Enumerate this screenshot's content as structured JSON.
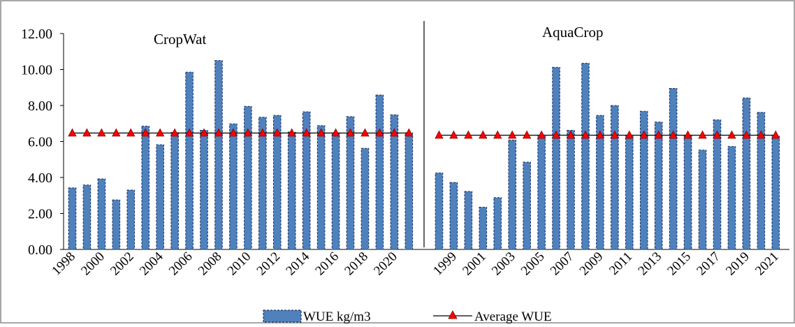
{
  "chart_data": {
    "type": "bar",
    "ylim": [
      0,
      12
    ],
    "yticks": [
      "0.00",
      "2.00",
      "4.00",
      "6.00",
      "8.00",
      "10.00",
      "12.00"
    ],
    "grid": false,
    "legend_position": "bottom",
    "legend": {
      "bar_label": "WUE kg/m3",
      "line_label": "Average WUE"
    },
    "colors": {
      "bar_fill": "#4f81bd",
      "bar_stroke": "#1f3864",
      "average_line": "#000000",
      "average_marker": "#ff0000"
    },
    "panels": [
      {
        "title": "CropWat",
        "categories": [
          "1998",
          "1999",
          "2000",
          "2001",
          "2002",
          "2003",
          "2004",
          "2005",
          "2006",
          "2007",
          "2008",
          "2009",
          "2010",
          "2011",
          "2012",
          "2013",
          "2014",
          "2015",
          "2016",
          "2017",
          "2018",
          "2019",
          "2020",
          "2021"
        ],
        "tick_labels": [
          "1998",
          "",
          "2000",
          "",
          "2002",
          "",
          "2004",
          "",
          "2006",
          "",
          "2008",
          "",
          "2010",
          "",
          "2012",
          "",
          "2014",
          "",
          "2016",
          "",
          "2018",
          "",
          "2020",
          ""
        ],
        "series": [
          {
            "name": "WUE kg/m3",
            "values": [
              3.42,
              3.58,
              3.92,
              2.75,
              3.3,
              6.85,
              5.82,
              6.5,
              9.85,
              6.62,
              10.5,
              6.98,
              7.95,
              7.35,
              7.45,
              6.52,
              7.65,
              6.88,
              6.48,
              7.38,
              5.62,
              8.58,
              7.48,
              6.48
            ]
          },
          {
            "name": "Average WUE",
            "values": [
              6.47,
              6.47,
              6.47,
              6.47,
              6.47,
              6.47,
              6.47,
              6.47,
              6.47,
              6.47,
              6.47,
              6.47,
              6.47,
              6.47,
              6.47,
              6.47,
              6.47,
              6.47,
              6.47,
              6.47,
              6.47,
              6.47,
              6.47,
              6.47
            ]
          }
        ]
      },
      {
        "title": "AquaCrop",
        "categories": [
          "1998",
          "1999",
          "2000",
          "2001",
          "2002",
          "2003",
          "2004",
          "2005",
          "2006",
          "2007",
          "2008",
          "2009",
          "2010",
          "2011",
          "2012",
          "2013",
          "2014",
          "2015",
          "2016",
          "2017",
          "2018",
          "2019",
          "2020",
          "2021"
        ],
        "tick_labels": [
          "",
          "1999",
          "",
          "2001",
          "",
          "2003",
          "",
          "2005",
          "",
          "2007",
          "",
          "2009",
          "",
          "2011",
          "",
          "2013",
          "",
          "2015",
          "",
          "2017",
          "",
          "2019",
          "",
          "2021"
        ],
        "series": [
          {
            "name": "WUE kg/m3",
            "values": [
              4.25,
              3.72,
              3.22,
              2.35,
              2.88,
              6.08,
              4.85,
              6.3,
              10.12,
              6.62,
              10.35,
              7.45,
              8.0,
              6.3,
              7.68,
              7.08,
              8.95,
              6.35,
              5.52,
              7.2,
              5.72,
              8.42,
              7.62,
              6.3
            ]
          },
          {
            "name": "Average WUE",
            "values": [
              6.35,
              6.35,
              6.35,
              6.35,
              6.35,
              6.35,
              6.35,
              6.35,
              6.35,
              6.35,
              6.35,
              6.35,
              6.35,
              6.35,
              6.35,
              6.35,
              6.35,
              6.35,
              6.35,
              6.35,
              6.35,
              6.35,
              6.35,
              6.35
            ]
          }
        ]
      }
    ]
  }
}
